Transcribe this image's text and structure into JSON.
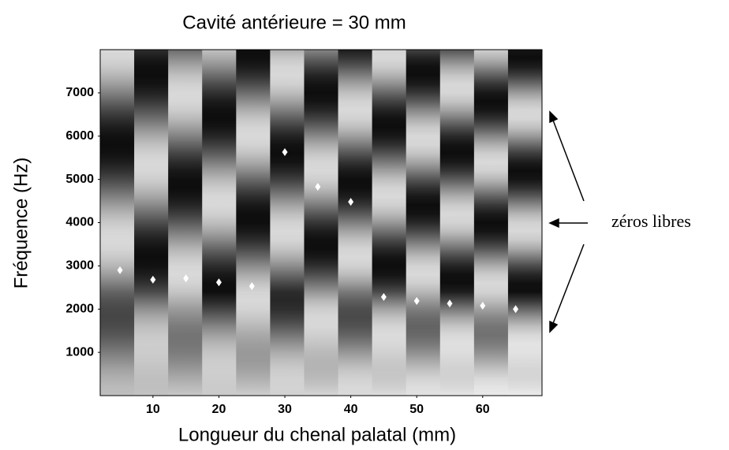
{
  "chart_data": {
    "type": "scatter",
    "title": "Cavité antérieure = 30 mm",
    "x_label": "Longueur du chenal palatal (mm)",
    "y_label": "Fréquence (Hz)",
    "annotation": "zéros libres",
    "x": [
      5,
      10,
      15,
      20,
      25,
      30,
      35,
      40,
      45,
      50,
      55,
      60,
      65
    ],
    "values": [
      2900,
      2680,
      2710,
      2620,
      2530,
      5630,
      4830,
      4480,
      2280,
      2190,
      2130,
      2080,
      2000
    ],
    "color": "#ffffff",
    "xlim": [
      2,
      69
    ],
    "ylim": [
      0,
      8000
    ],
    "xticks": [
      10,
      20,
      30,
      40,
      50,
      60
    ],
    "yticks": [
      1000,
      2000,
      3000,
      4000,
      5000,
      6000,
      7000
    ]
  }
}
